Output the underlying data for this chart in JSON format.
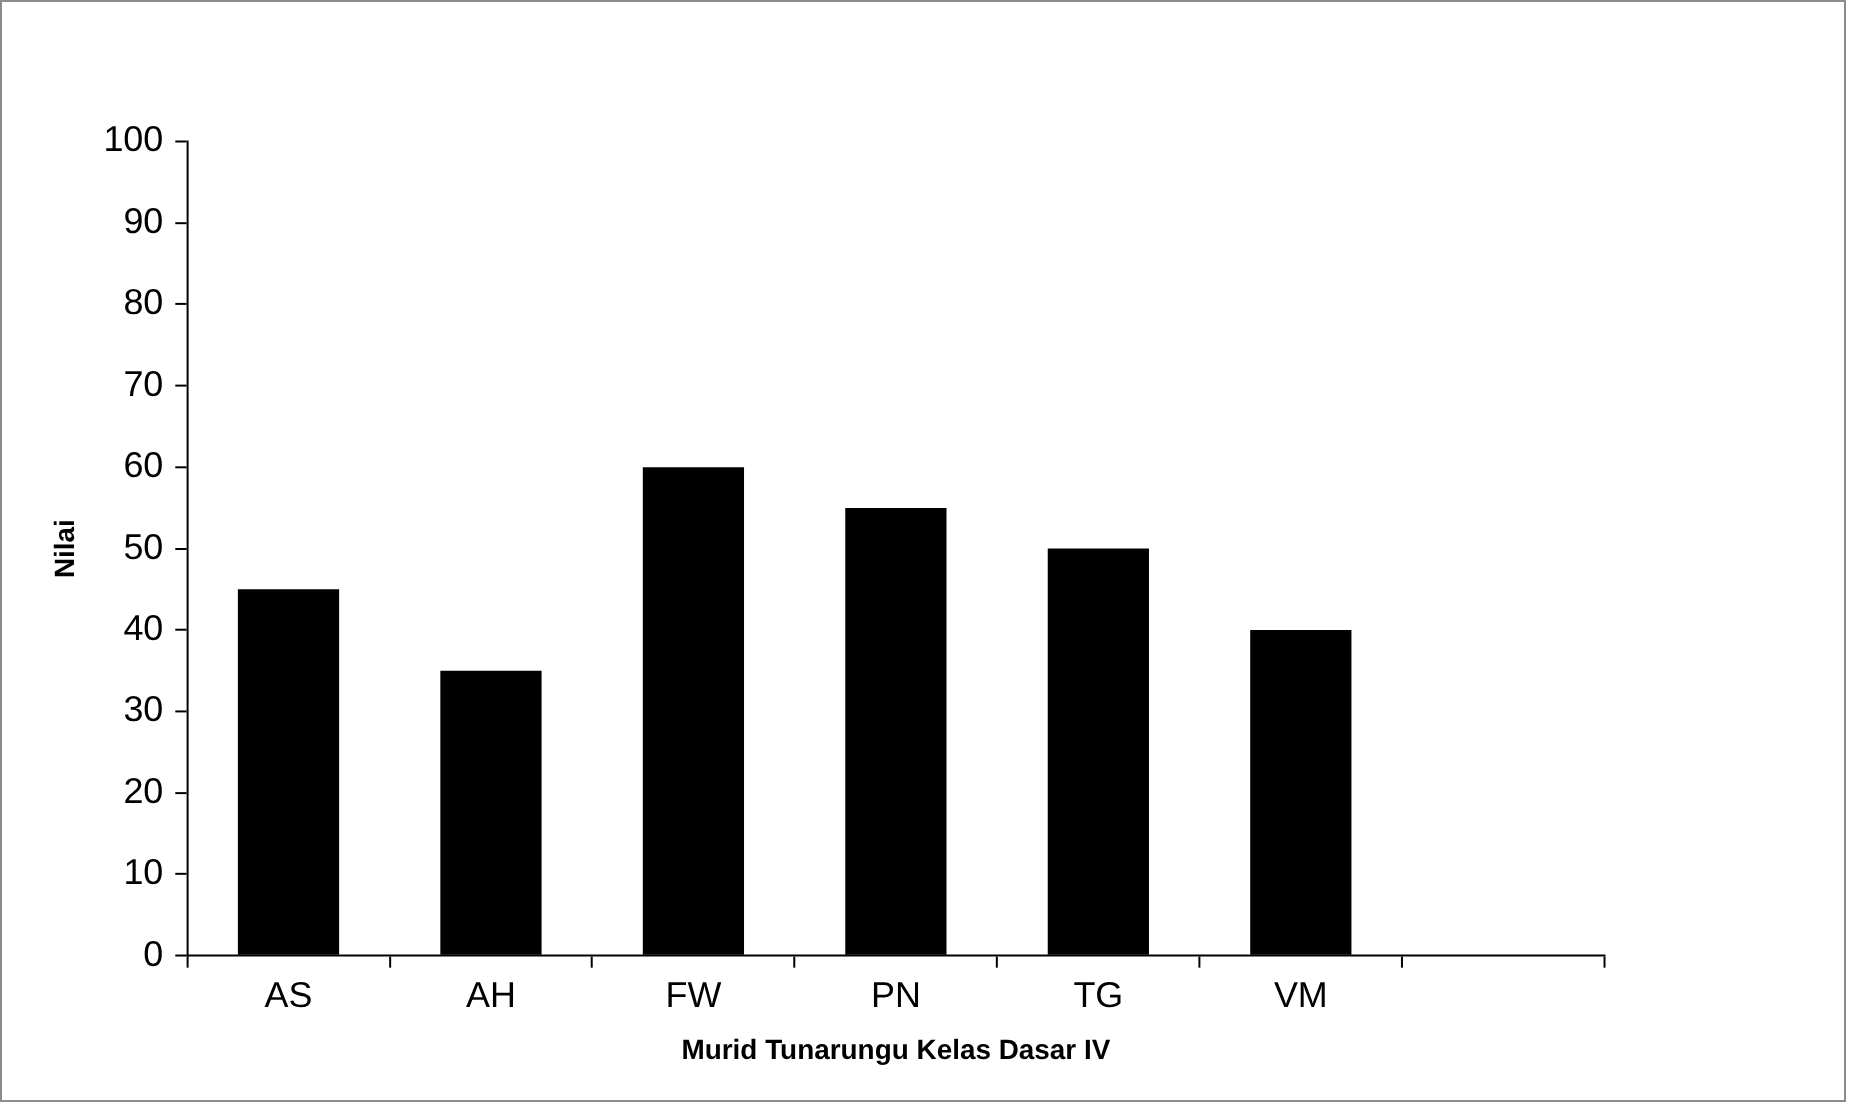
{
  "chart_data": {
    "type": "bar",
    "xlabel": "Murid Tunarungu Kelas Dasar IV",
    "ylabel": "Nilai",
    "categories": [
      "AS",
      "AH",
      "FW",
      "PN",
      "TG",
      "VM",
      null
    ],
    "values": [
      45,
      35,
      60,
      55,
      50,
      40,
      null
    ],
    "color": "#000000",
    "ylim": [
      0,
      100
    ],
    "yticks": [
      0,
      10,
      20,
      30,
      40,
      50,
      60,
      70,
      80,
      90,
      100
    ],
    "grid": false,
    "legend": false
  }
}
